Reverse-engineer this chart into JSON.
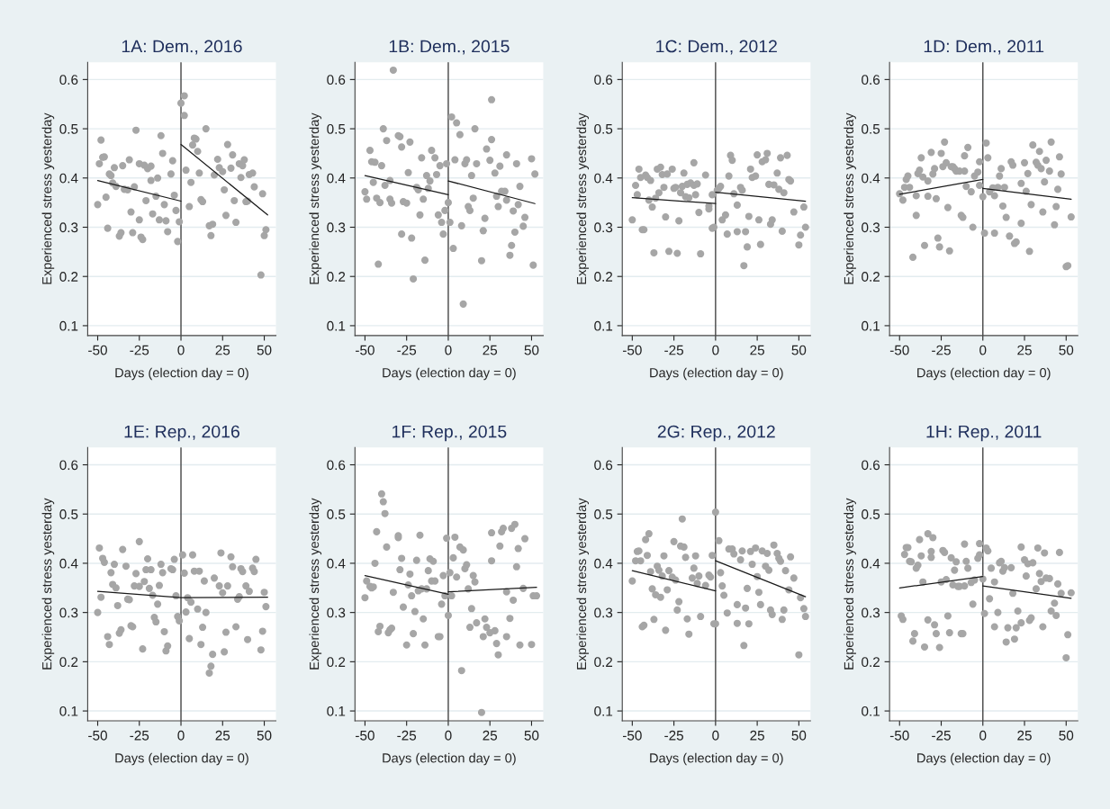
{
  "chart_data": [
    {
      "type": "scatter",
      "title": "1A: Dem., 2016",
      "xlabel": "Days (election day = 0)",
      "ylabel": "Experienced stress yesterday",
      "xlim": [
        -56,
        57
      ],
      "ylim": [
        0.08,
        0.635
      ],
      "xticks": [
        -50,
        -25,
        0,
        25,
        50
      ],
      "yticks": [
        0.1,
        0.2,
        0.3,
        0.4,
        0.5,
        0.6
      ],
      "grid": "y",
      "ref_lines": [
        {
          "axis": "x",
          "value": 0,
          "color": "#444444"
        }
      ],
      "series": [
        {
          "marker": "circle",
          "color": "#a6a6a6",
          "x": [
            -50,
            -49,
            -48,
            -47,
            -46,
            -45,
            -44,
            -43,
            -42,
            -41,
            -40,
            -39,
            -37,
            -36,
            -35,
            -34,
            -32,
            -31,
            -30,
            -29,
            -28,
            -27,
            -25,
            -25,
            -24,
            -23,
            -22,
            -21,
            -20,
            -18,
            -18,
            -17,
            -15,
            -14,
            -13,
            -12,
            -11,
            -10,
            -9,
            -8,
            -6,
            -5,
            -4,
            -3,
            -2,
            -1,
            0,
            2,
            2,
            3,
            5,
            6,
            7,
            8,
            9,
            10,
            11,
            12,
            13,
            15,
            17,
            19,
            18,
            20,
            22,
            23,
            25,
            26,
            27,
            28,
            30,
            31,
            32,
            33,
            35,
            36,
            37,
            38,
            39,
            40,
            41,
            43,
            44,
            48,
            49,
            50,
            51
          ],
          "values": [
            0.346,
            0.429,
            0.477,
            0.442,
            0.443,
            0.361,
            0.298,
            0.408,
            0.405,
            0.39,
            0.421,
            0.383,
            0.282,
            0.289,
            0.425,
            0.377,
            0.376,
            0.437,
            0.331,
            0.289,
            0.382,
            0.497,
            0.315,
            0.429,
            0.28,
            0.275,
            0.426,
            0.354,
            0.419,
            0.395,
            0.424,
            0.327,
            0.363,
            0.4,
            0.315,
            0.486,
            0.45,
            0.346,
            0.313,
            0.291,
            0.408,
            0.435,
            0.365,
            0.334,
            0.271,
            0.311,
            0.552,
            0.567,
            0.527,
            0.416,
            0.342,
            0.391,
            0.467,
            0.481,
            0.479,
            0.454,
            0.41,
            0.356,
            0.352,
            0.5,
            0.303,
            0.306,
            0.283,
            0.406,
            0.438,
            0.421,
            0.413,
            0.376,
            0.324,
            0.468,
            0.42,
            0.447,
            0.354,
            0.31,
            0.429,
            0.401,
            0.425,
            0.437,
            0.352,
            0.353,
            0.407,
            0.41,
            0.382,
            0.203,
            0.368,
            0.283,
            0.295
          ]
        },
        {
          "type": "line",
          "color": "#1a1a1a",
          "x": [
            -50,
            0
          ],
          "values": [
            0.395,
            0.353
          ]
        },
        {
          "type": "line",
          "color": "#1a1a1a",
          "x": [
            0,
            52
          ],
          "values": [
            0.468,
            0.325
          ]
        }
      ]
    },
    {
      "type": "scatter",
      "title": "1B: Dem., 2015",
      "xlabel": "Days (election day = 0)",
      "ylabel": "Experienced stress yesterday",
      "xlim": [
        -56,
        57
      ],
      "ylim": [
        0.08,
        0.635
      ],
      "xticks": [
        -50,
        -25,
        0,
        25,
        50
      ],
      "yticks": [
        0.1,
        0.2,
        0.3,
        0.4,
        0.5,
        0.6
      ],
      "grid": "y",
      "ref_lines": [
        {
          "axis": "x",
          "value": 0,
          "color": "#444444"
        }
      ],
      "series": [
        {
          "marker": "circle",
          "color": "#a6a6a6",
          "x": [
            -50,
            -49,
            -47,
            -46,
            -45,
            -44,
            -43,
            -42,
            -41,
            -40,
            -39,
            -38,
            -37,
            -35,
            -35,
            -34,
            -33,
            -30,
            -29,
            -28,
            -28,
            -27,
            -25,
            -24,
            -23,
            -22,
            -21,
            -19,
            -18,
            -17,
            -16,
            -15,
            -14,
            -13,
            -12,
            -11,
            -10,
            -8,
            -7,
            -6,
            -5,
            -4,
            -3,
            -2,
            -1,
            0,
            1,
            2,
            3,
            4,
            5,
            7,
            8,
            9,
            10,
            11,
            12,
            13,
            14,
            15,
            16,
            17,
            20,
            21,
            22,
            23,
            25,
            26,
            26,
            28,
            29,
            30,
            31,
            32,
            34,
            35,
            35,
            37,
            38,
            39,
            40,
            41,
            42,
            43,
            45,
            46,
            50,
            51,
            52
          ],
          "values": [
            0.372,
            0.357,
            0.456,
            0.433,
            0.391,
            0.432,
            0.359,
            0.225,
            0.35,
            0.425,
            0.5,
            0.385,
            0.476,
            0.357,
            0.395,
            0.349,
            0.619,
            0.486,
            0.484,
            0.463,
            0.286,
            0.352,
            0.349,
            0.411,
            0.473,
            0.278,
            0.195,
            0.381,
            0.376,
            0.325,
            0.441,
            0.357,
            0.233,
            0.405,
            0.379,
            0.394,
            0.456,
            0.441,
            0.407,
            0.325,
            0.425,
            0.31,
            0.286,
            0.334,
            0.429,
            0.35,
            0.31,
            0.524,
            0.257,
            0.437,
            0.512,
            0.488,
            0.303,
            0.144,
            0.429,
            0.437,
            0.342,
            0.334,
            0.405,
            0.359,
            0.5,
            0.429,
            0.232,
            0.293,
            0.318,
            0.459,
            0.436,
            0.478,
            0.559,
            0.41,
            0.363,
            0.342,
            0.424,
            0.373,
            0.373,
            0.447,
            0.355,
            0.243,
            0.263,
            0.333,
            0.29,
            0.429,
            0.346,
            0.383,
            0.302,
            0.32,
            0.439,
            0.223,
            0.408
          ]
        },
        {
          "type": "line",
          "color": "#1a1a1a",
          "x": [
            -50,
            0
          ],
          "values": [
            0.405,
            0.366
          ]
        },
        {
          "type": "line",
          "color": "#1a1a1a",
          "x": [
            0,
            52
          ],
          "values": [
            0.394,
            0.348
          ]
        }
      ]
    },
    {
      "type": "scatter",
      "title": "1C: Dem., 2012",
      "xlabel": "Days (election day = 0)",
      "ylabel": "Experienced stress yesterday",
      "xlim": [
        -56,
        57
      ],
      "ylim": [
        0.08,
        0.635
      ],
      "xticks": [
        -50,
        -25,
        0,
        25,
        50
      ],
      "yticks": [
        0.1,
        0.2,
        0.3,
        0.4,
        0.5,
        0.6
      ],
      "grid": "y",
      "ref_lines": [
        {
          "axis": "x",
          "value": 0,
          "color": "#444444"
        }
      ],
      "series": [
        {
          "marker": "circle",
          "color": "#a6a6a6",
          "x": [
            -50,
            -48,
            -47,
            -46,
            -45,
            -44,
            -43,
            -42,
            -41,
            -40,
            -39,
            -38,
            -37,
            -36,
            -35,
            -34,
            -33,
            -32,
            -31,
            -30,
            -29,
            -28,
            -26,
            -25,
            -24,
            -23,
            -22,
            -21,
            -20,
            -19,
            -18,
            -17,
            -16,
            -15,
            -13,
            -13,
            -12,
            -11,
            -10,
            -9,
            -6,
            -4,
            -4,
            -2,
            -2,
            -1,
            1,
            2,
            3,
            4,
            6,
            7,
            8,
            9,
            10,
            11,
            13,
            13,
            15,
            16,
            17,
            18,
            19,
            20,
            21,
            22,
            24,
            25,
            26,
            27,
            28,
            30,
            31,
            32,
            33,
            34,
            35,
            37,
            38,
            39,
            40,
            41,
            43,
            44,
            45,
            47,
            50,
            51,
            53,
            54
          ],
          "values": [
            0.315,
            0.385,
            0.366,
            0.418,
            0.401,
            0.295,
            0.295,
            0.406,
            0.401,
            0.355,
            0.395,
            0.341,
            0.248,
            0.359,
            0.418,
            0.37,
            0.422,
            0.407,
            0.381,
            0.321,
            0.408,
            0.251,
            0.418,
            0.379,
            0.381,
            0.247,
            0.313,
            0.37,
            0.383,
            0.41,
            0.362,
            0.387,
            0.36,
            0.39,
            0.431,
            0.385,
            0.366,
            0.388,
            0.33,
            0.246,
            0.406,
            0.343,
            0.337,
            0.366,
            0.298,
            0.3,
            0.375,
            0.379,
            0.383,
            0.315,
            0.325,
            0.286,
            0.404,
            0.446,
            0.436,
            0.368,
            0.345,
            0.291,
            0.381,
            0.375,
            0.222,
            0.291,
            0.26,
            0.322,
            0.418,
            0.401,
            0.404,
            0.447,
            0.315,
            0.265,
            0.433,
            0.437,
            0.45,
            0.387,
            0.306,
            0.315,
            0.386,
            0.41,
            0.377,
            0.441,
            0.292,
            0.37,
            0.446,
            0.397,
            0.394,
            0.331,
            0.264,
            0.284,
            0.341,
            0.3
          ]
        },
        {
          "type": "line",
          "color": "#1a1a1a",
          "x": [
            -50,
            0
          ],
          "values": [
            0.36,
            0.348
          ]
        },
        {
          "type": "line",
          "color": "#1a1a1a",
          "x": [
            0,
            54
          ],
          "values": [
            0.371,
            0.353
          ]
        }
      ]
    },
    {
      "type": "scatter",
      "title": "1D: Dem., 2011",
      "xlabel": "Days (election day = 0)",
      "ylabel": "Experienced stress yesterday",
      "xlim": [
        -56,
        57
      ],
      "ylim": [
        0.08,
        0.635
      ],
      "xticks": [
        -50,
        -25,
        0,
        25,
        50
      ],
      "yticks": [
        0.1,
        0.2,
        0.3,
        0.4,
        0.5,
        0.6
      ],
      "grid": "y",
      "ref_lines": [
        {
          "axis": "x",
          "value": 0,
          "color": "#444444"
        }
      ],
      "series": [
        {
          "marker": "circle",
          "color": "#a6a6a6",
          "x": [
            -50,
            -48,
            -47,
            -46,
            -45,
            -44,
            -42,
            -40,
            -40,
            -39,
            -38,
            -37,
            -36,
            -35,
            -33,
            -33,
            -31,
            -30,
            -29,
            -28,
            -27,
            -26,
            -25,
            -24,
            -23,
            -22,
            -21,
            -20,
            -19,
            -18,
            -17,
            -16,
            -14,
            -13,
            -12,
            -11,
            -11,
            -10,
            -9,
            -7,
            -6,
            -5,
            -3,
            -2,
            -2,
            0,
            1,
            2,
            3,
            4,
            6,
            7,
            7,
            9,
            10,
            11,
            12,
            13,
            14,
            16,
            17,
            18,
            19,
            20,
            23,
            23,
            25,
            26,
            27,
            28,
            29,
            30,
            32,
            33,
            34,
            35,
            36,
            37,
            38,
            40,
            41,
            43,
            44,
            45,
            46,
            47,
            50,
            51,
            53
          ],
          "values": [
            0.368,
            0.355,
            0.381,
            0.397,
            0.404,
            0.381,
            0.239,
            0.324,
            0.364,
            0.409,
            0.416,
            0.441,
            0.402,
            0.263,
            0.363,
            0.394,
            0.452,
            0.408,
            0.419,
            0.358,
            0.278,
            0.26,
            0.45,
            0.423,
            0.473,
            0.431,
            0.34,
            0.252,
            0.423,
            0.423,
            0.419,
            0.414,
            0.414,
            0.324,
            0.32,
            0.414,
            0.445,
            0.383,
            0.462,
            0.372,
            0.3,
            0.404,
            0.412,
            0.385,
            0.433,
            0.362,
            0.288,
            0.471,
            0.441,
            0.372,
            0.38,
            0.364,
            0.288,
            0.381,
            0.404,
            0.419,
            0.343,
            0.381,
            0.32,
            0.282,
            0.433,
            0.426,
            0.267,
            0.27,
            0.389,
            0.308,
            0.431,
            0.373,
            0.409,
            0.251,
            0.346,
            0.467,
            0.432,
            0.426,
            0.454,
            0.419,
            0.331,
            0.392,
            0.436,
            0.414,
            0.473,
            0.305,
            0.342,
            0.377,
            0.443,
            0.408,
            0.22,
            0.222,
            0.321
          ]
        },
        {
          "type": "line",
          "color": "#1a1a1a",
          "x": [
            -50,
            0
          ],
          "values": [
            0.367,
            0.397
          ]
        },
        {
          "type": "line",
          "color": "#1a1a1a",
          "x": [
            0,
            53
          ],
          "values": [
            0.379,
            0.357
          ]
        }
      ]
    },
    {
      "type": "scatter",
      "title": "1E: Rep., 2016",
      "xlabel": "Days (election day = 0)",
      "ylabel": "Experienced stress yesterday",
      "xlim": [
        -56,
        57
      ],
      "ylim": [
        0.08,
        0.635
      ],
      "xticks": [
        -50,
        -25,
        0,
        25,
        50
      ],
      "yticks": [
        0.1,
        0.2,
        0.3,
        0.4,
        0.5,
        0.6
      ],
      "grid": "y",
      "ref_lines": [
        {
          "axis": "x",
          "value": 0,
          "color": "#444444"
        }
      ],
      "series": [
        {
          "marker": "circle",
          "color": "#a6a6a6",
          "x": [
            -50,
            -49,
            -48,
            -47,
            -46,
            -44,
            -43,
            -42,
            -41,
            -40,
            -39,
            -38,
            -37,
            -36,
            -35,
            -33,
            -32,
            -31,
            -30,
            -29,
            -28,
            -27,
            -25,
            -25,
            -23,
            -22,
            -21,
            -20,
            -19,
            -18,
            -17,
            -16,
            -15,
            -14,
            -13,
            -12,
            -11,
            -10,
            -9,
            -8,
            -6,
            -5,
            -4,
            -3,
            -2,
            -1,
            1,
            2,
            3,
            4,
            5,
            6,
            7,
            8,
            10,
            11,
            12,
            13,
            14,
            15,
            17,
            18,
            19,
            20,
            23,
            24,
            25,
            26,
            27,
            28,
            30,
            31,
            33,
            34,
            35,
            36,
            37,
            39,
            40,
            41,
            43,
            44,
            45,
            48,
            49,
            50,
            51
          ],
          "values": [
            0.3,
            0.431,
            0.331,
            0.41,
            0.402,
            0.251,
            0.235,
            0.381,
            0.357,
            0.398,
            0.35,
            0.314,
            0.258,
            0.265,
            0.428,
            0.394,
            0.327,
            0.326,
            0.273,
            0.271,
            0.354,
            0.379,
            0.444,
            0.353,
            0.226,
            0.363,
            0.387,
            0.409,
            0.349,
            0.387,
            0.335,
            0.29,
            0.281,
            0.317,
            0.355,
            0.398,
            0.381,
            0.261,
            0.222,
            0.232,
            0.389,
            0.387,
            0.408,
            0.334,
            0.292,
            0.283,
            0.417,
            0.38,
            0.301,
            0.33,
            0.247,
            0.321,
            0.417,
            0.384,
            0.307,
            0.384,
            0.235,
            0.27,
            0.364,
            0.3,
            0.177,
            0.191,
            0.215,
            0.37,
            0.354,
            0.421,
            0.34,
            0.22,
            0.26,
            0.354,
            0.413,
            0.393,
            0.271,
            0.327,
            0.332,
            0.389,
            0.383,
            0.354,
            0.245,
            0.343,
            0.39,
            0.383,
            0.408,
            0.224,
            0.262,
            0.341,
            0.312
          ]
        },
        {
          "type": "line",
          "color": "#1a1a1a",
          "x": [
            -50,
            0,
            52
          ],
          "values": [
            0.343,
            0.33,
            0.331
          ]
        }
      ]
    },
    {
      "type": "scatter",
      "title": "1F: Rep., 2015",
      "xlabel": "Days (election day = 0)",
      "ylabel": "Experienced stress yesterday",
      "xlim": [
        -56,
        57
      ],
      "ylim": [
        0.08,
        0.635
      ],
      "xticks": [
        -50,
        -25,
        0,
        25,
        50
      ],
      "yticks": [
        0.1,
        0.2,
        0.3,
        0.4,
        0.5,
        0.6
      ],
      "grid": "y",
      "ref_lines": [
        {
          "axis": "x",
          "value": 0,
          "color": "#444444"
        }
      ],
      "series": [
        {
          "marker": "circle",
          "color": "#a6a6a6",
          "x": [
            -50,
            -49,
            -47,
            -46,
            -45,
            -44,
            -43,
            -42,
            -41,
            -40,
            -39,
            -38,
            -37,
            -36,
            -35,
            -34,
            -33,
            -30,
            -30,
            -29,
            -28,
            -27,
            -25,
            -24,
            -23,
            -22,
            -21,
            -20,
            -19,
            -18,
            -17,
            -16,
            -15,
            -14,
            -13,
            -12,
            -11,
            -10,
            -9,
            -8,
            -6,
            -5,
            -4,
            -3,
            -2,
            -1,
            0,
            1,
            2,
            3,
            4,
            5,
            7,
            8,
            9,
            10,
            11,
            12,
            13,
            14,
            15,
            16,
            17,
            20,
            21,
            22,
            23,
            25,
            26,
            26,
            28,
            29,
            30,
            31,
            32,
            33,
            35,
            35,
            37,
            38,
            39,
            40,
            41,
            42,
            43,
            45,
            46,
            50,
            51,
            53
          ],
          "values": [
            0.33,
            0.364,
            0.353,
            0.35,
            0.352,
            0.4,
            0.464,
            0.261,
            0.272,
            0.541,
            0.525,
            0.501,
            0.433,
            0.259,
            0.265,
            0.268,
            0.341,
            0.452,
            0.456,
            0.387,
            0.41,
            0.311,
            0.234,
            0.356,
            0.378,
            0.334,
            0.257,
            0.302,
            0.406,
            0.344,
            0.457,
            0.348,
            0.287,
            0.234,
            0.348,
            0.385,
            0.409,
            0.364,
            0.404,
            0.364,
            0.251,
            0.251,
            0.317,
            0.375,
            0.334,
            0.451,
            0.294,
            0.381,
            0.334,
            0.411,
            0.453,
            0.372,
            0.433,
            0.182,
            0.427,
            0.389,
            0.397,
            0.348,
            0.27,
            0.308,
            0.375,
            0.362,
            0.279,
            0.097,
            0.251,
            0.287,
            0.27,
            0.259,
            0.405,
            0.462,
            0.263,
            0.237,
            0.214,
            0.435,
            0.464,
            0.471,
            0.342,
            0.251,
            0.288,
            0.471,
            0.325,
            0.479,
            0.393,
            0.43,
            0.234,
            0.349,
            0.45,
            0.235,
            0.334,
            0.334
          ]
        },
        {
          "type": "line",
          "color": "#1a1a1a",
          "x": [
            -50,
            0
          ],
          "values": [
            0.375,
            0.337
          ]
        },
        {
          "type": "line",
          "color": "#1a1a1a",
          "x": [
            0,
            53
          ],
          "values": [
            0.342,
            0.351
          ]
        }
      ]
    },
    {
      "type": "scatter",
      "title": "2G: Rep., 2012",
      "xlabel": "Days (election day = 0)",
      "ylabel": "Experienced stress yesterday",
      "xlim": [
        -56,
        57
      ],
      "ylim": [
        0.08,
        0.635
      ],
      "xticks": [
        -50,
        -25,
        0,
        25,
        50
      ],
      "yticks": [
        0.1,
        0.2,
        0.3,
        0.4,
        0.5,
        0.6
      ],
      "grid": "y",
      "ref_lines": [
        {
          "axis": "x",
          "value": 0,
          "color": "#444444"
        }
      ],
      "series": [
        {
          "marker": "circle",
          "color": "#a6a6a6",
          "x": [
            -50,
            -48,
            -47,
            -46,
            -45,
            -44,
            -43,
            -42,
            -41,
            -40,
            -39,
            -38,
            -37,
            -36,
            -35,
            -34,
            -33,
            -32,
            -31,
            -30,
            -29,
            -28,
            -26,
            -25,
            -24,
            -23,
            -22,
            -21,
            -20,
            -19,
            -18,
            -17,
            -16,
            -14,
            -13,
            -12,
            -11,
            -10,
            -9,
            -6,
            -4,
            -3,
            -2,
            -1,
            0,
            0,
            2,
            3,
            4,
            5,
            7,
            8,
            10,
            11,
            13,
            13,
            15,
            16,
            17,
            18,
            19,
            20,
            21,
            22,
            24,
            25,
            26,
            27,
            28,
            30,
            31,
            32,
            33,
            34,
            35,
            37,
            38,
            39,
            40,
            41,
            42,
            44,
            45,
            47,
            50,
            51,
            53,
            54
          ],
          "values": [
            0.364,
            0.405,
            0.424,
            0.425,
            0.405,
            0.271,
            0.274,
            0.448,
            0.416,
            0.46,
            0.383,
            0.348,
            0.286,
            0.336,
            0.394,
            0.386,
            0.331,
            0.374,
            0.415,
            0.264,
            0.346,
            0.385,
            0.372,
            0.444,
            0.366,
            0.305,
            0.322,
            0.435,
            0.49,
            0.433,
            0.412,
            0.287,
            0.256,
            0.37,
            0.39,
            0.415,
            0.359,
            0.374,
            0.292,
            0.355,
            0.376,
            0.372,
            0.416,
            0.277,
            0.277,
            0.504,
            0.446,
            0.381,
            0.354,
            0.335,
            0.299,
            0.429,
            0.429,
            0.419,
            0.278,
            0.316,
            0.407,
            0.425,
            0.233,
            0.309,
            0.349,
            0.277,
            0.424,
            0.398,
            0.431,
            0.373,
            0.341,
            0.316,
            0.425,
            0.394,
            0.42,
            0.386,
            0.305,
            0.296,
            0.437,
            0.42,
            0.41,
            0.404,
            0.286,
            0.305,
            0.385,
            0.346,
            0.413,
            0.37,
            0.214,
            0.33,
            0.308,
            0.292
          ]
        },
        {
          "type": "line",
          "color": "#1a1a1a",
          "x": [
            -50,
            0
          ],
          "values": [
            0.385,
            0.344
          ]
        },
        {
          "type": "line",
          "color": "#1a1a1a",
          "x": [
            0,
            54
          ],
          "values": [
            0.405,
            0.332
          ]
        }
      ]
    },
    {
      "type": "scatter",
      "title": "1H: Rep., 2011",
      "xlabel": "Days (election day = 0)",
      "ylabel": "Experienced stress yesterday",
      "xlim": [
        -56,
        57
      ],
      "ylim": [
        0.08,
        0.635
      ],
      "xticks": [
        -50,
        -25,
        0,
        25,
        50
      ],
      "yticks": [
        0.1,
        0.2,
        0.3,
        0.4,
        0.5,
        0.6
      ],
      "grid": "y",
      "ref_lines": [
        {
          "axis": "x",
          "value": 0,
          "color": "#444444"
        }
      ],
      "series": [
        {
          "marker": "circle",
          "color": "#a6a6a6",
          "x": [
            -49,
            -48,
            -47,
            -46,
            -45,
            -44,
            -43,
            -42,
            -41,
            -40,
            -39,
            -38,
            -37,
            -36,
            -35,
            -33,
            -33,
            -31,
            -31,
            -30,
            -29,
            -28,
            -26,
            -25,
            -24,
            -23,
            -22,
            -21,
            -20,
            -19,
            -18,
            -17,
            -16,
            -15,
            -14,
            -13,
            -12,
            -11,
            -11,
            -10,
            -9,
            -7,
            -6,
            -5,
            -3,
            -2,
            -2,
            0,
            1,
            2,
            3,
            4,
            5,
            7,
            7,
            9,
            10,
            11,
            12,
            13,
            14,
            15,
            17,
            18,
            19,
            20,
            21,
            23,
            23,
            25,
            26,
            27,
            28,
            29,
            30,
            32,
            33,
            34,
            35,
            36,
            37,
            38,
            40,
            41,
            43,
            44,
            45,
            46,
            47,
            50,
            51,
            53
          ],
          "values": [
            0.293,
            0.286,
            0.418,
            0.432,
            0.432,
            0.404,
            0.403,
            0.242,
            0.257,
            0.39,
            0.396,
            0.448,
            0.415,
            0.362,
            0.23,
            0.285,
            0.46,
            0.424,
            0.412,
            0.452,
            0.275,
            0.257,
            0.229,
            0.362,
            0.426,
            0.422,
            0.367,
            0.293,
            0.259,
            0.411,
            0.356,
            0.386,
            0.403,
            0.353,
            0.353,
            0.257,
            0.257,
            0.354,
            0.439,
            0.404,
            0.39,
            0.361,
            0.317,
            0.366,
            0.41,
            0.417,
            0.44,
            0.368,
            0.298,
            0.431,
            0.425,
            0.328,
            0.39,
            0.362,
            0.271,
            0.3,
            0.401,
            0.404,
            0.384,
            0.391,
            0.24,
            0.269,
            0.391,
            0.339,
            0.246,
            0.269,
            0.303,
            0.279,
            0.433,
            0.407,
            0.374,
            0.399,
            0.284,
            0.289,
            0.401,
            0.348,
            0.431,
            0.379,
            0.363,
            0.271,
            0.421,
            0.37,
            0.369,
            0.303,
            0.319,
            0.294,
            0.358,
            0.422,
            0.339,
            0.208,
            0.255,
            0.34
          ]
        },
        {
          "type": "line",
          "color": "#1a1a1a",
          "x": [
            -50,
            0
          ],
          "values": [
            0.35,
            0.373
          ]
        },
        {
          "type": "line",
          "color": "#1a1a1a",
          "x": [
            0,
            53
          ],
          "values": [
            0.354,
            0.329
          ]
        }
      ]
    }
  ]
}
